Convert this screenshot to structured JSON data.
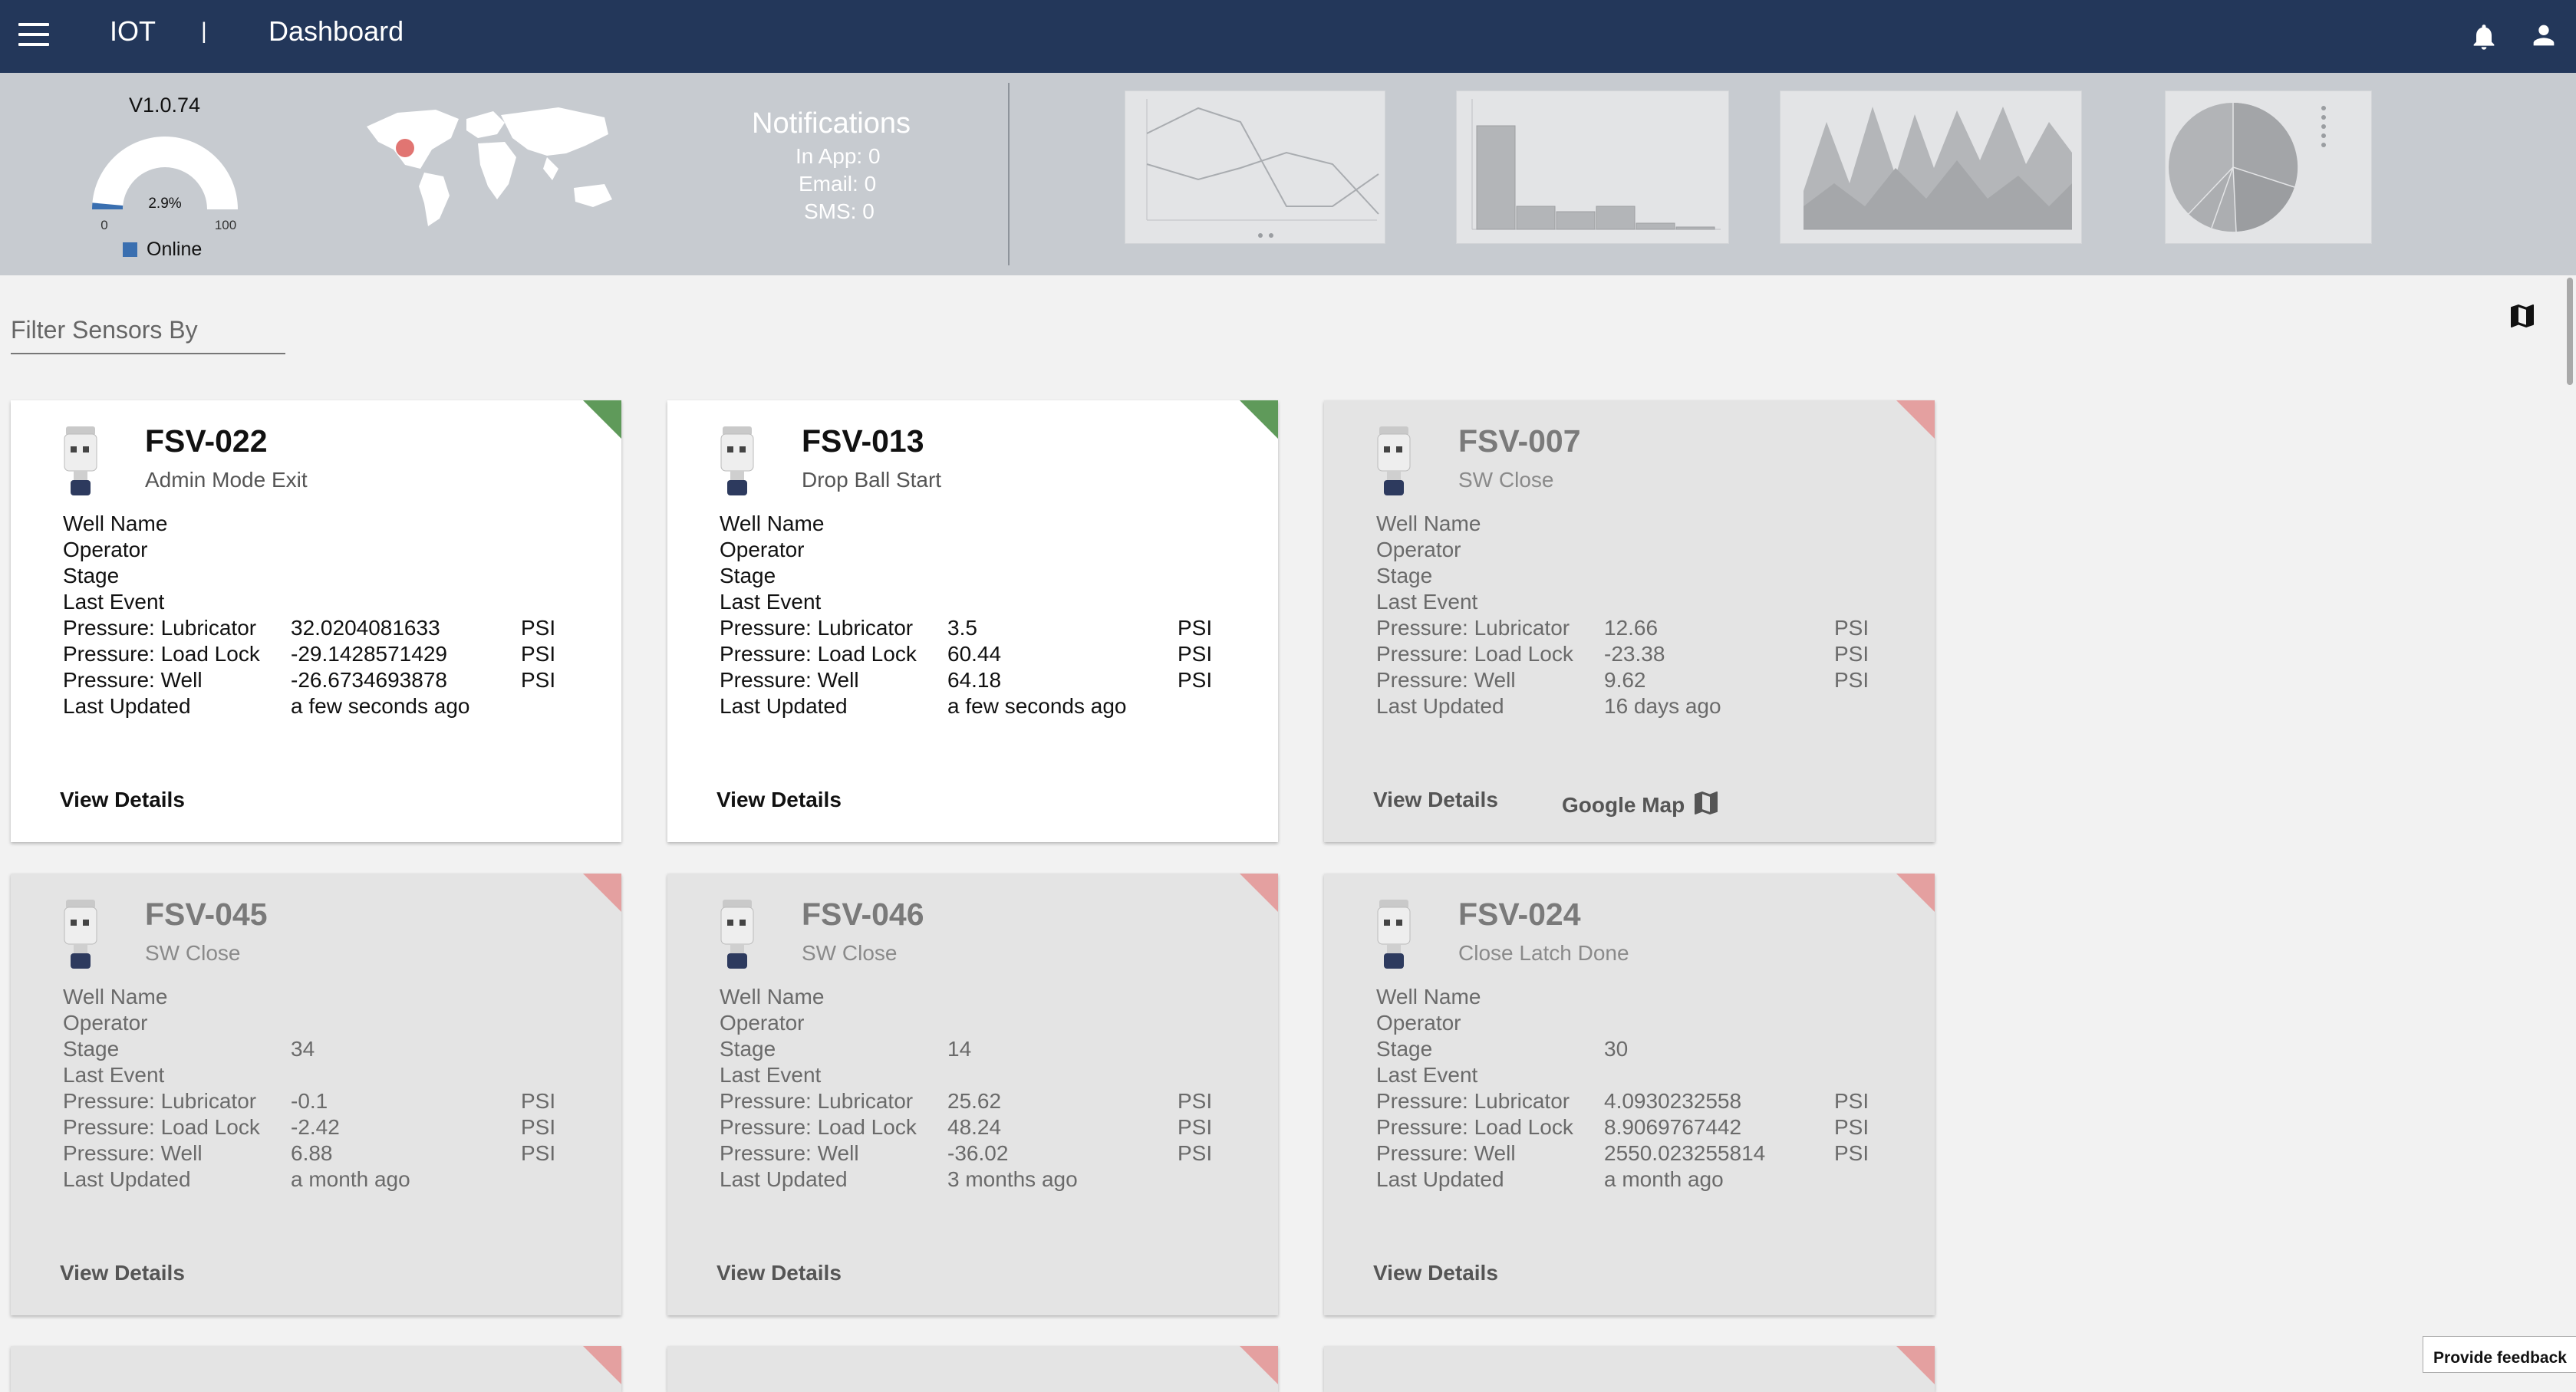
{
  "header": {
    "app_title": "IOT",
    "separator": "|",
    "page_title": "Dashboard"
  },
  "summary": {
    "version": "V1.0.74",
    "gauge": {
      "value_label": "2.9%",
      "value": 2.9,
      "min_label": "0",
      "max_label": "100",
      "fill_color": "#3a6fb0"
    },
    "legend_online": "Online",
    "notifications": {
      "title": "Notifications",
      "in_app": "In App: 0",
      "email": "Email: 0",
      "sms": "SMS: 0"
    }
  },
  "filter": {
    "placeholder": "Filter Sensors By",
    "value": ""
  },
  "cards": [
    {
      "id": "FSV-022",
      "status": "Admin Mode Exit",
      "state": "active",
      "well_name_label": "Well Name",
      "operator_label": "Operator",
      "stage_label": "Stage",
      "stage_value": "",
      "last_event_label": "Last Event",
      "lubricator_label": "Pressure: Lubricator",
      "lubricator": "32.0204081633",
      "loadlock_label": "Pressure: Load Lock",
      "loadlock": "-29.1428571429",
      "well_label": "Pressure: Well",
      "well": "-26.6734693878",
      "unit": "PSI",
      "updated_label": "Last Updated",
      "updated": "a few seconds ago",
      "view_label": "View Details"
    },
    {
      "id": "FSV-013",
      "status": "Drop Ball Start",
      "state": "active",
      "well_name_label": "Well Name",
      "operator_label": "Operator",
      "stage_label": "Stage",
      "stage_value": "",
      "last_event_label": "Last Event",
      "lubricator_label": "Pressure: Lubricator",
      "lubricator": "3.5",
      "loadlock_label": "Pressure: Load Lock",
      "loadlock": "60.44",
      "well_label": "Pressure: Well",
      "well": "64.18",
      "unit": "PSI",
      "updated_label": "Last Updated",
      "updated": "a few seconds ago",
      "view_label": "View Details"
    },
    {
      "id": "FSV-007",
      "status": "SW Close",
      "state": "inactive",
      "well_name_label": "Well Name",
      "operator_label": "Operator",
      "stage_label": "Stage",
      "stage_value": "",
      "last_event_label": "Last Event",
      "lubricator_label": "Pressure: Lubricator",
      "lubricator": "12.66",
      "loadlock_label": "Pressure: Load Lock",
      "loadlock": "-23.38",
      "well_label": "Pressure: Well",
      "well": "9.62",
      "unit": "PSI",
      "updated_label": "Last Updated",
      "updated": "16 days ago",
      "view_label": "View Details",
      "map_label": "Google Map"
    },
    {
      "id": "FSV-045",
      "status": "SW Close",
      "state": "inactive",
      "well_name_label": "Well Name",
      "operator_label": "Operator",
      "stage_label": "Stage",
      "stage_value": "34",
      "last_event_label": "Last Event",
      "lubricator_label": "Pressure: Lubricator",
      "lubricator": "-0.1",
      "loadlock_label": "Pressure: Load Lock",
      "loadlock": "-2.42",
      "well_label": "Pressure: Well",
      "well": "6.88",
      "unit": "PSI",
      "updated_label": "Last Updated",
      "updated": "a month ago",
      "view_label": "View Details"
    },
    {
      "id": "FSV-046",
      "status": "SW Close",
      "state": "inactive",
      "well_name_label": "Well Name",
      "operator_label": "Operator",
      "stage_label": "Stage",
      "stage_value": "14",
      "last_event_label": "Last Event",
      "lubricator_label": "Pressure: Lubricator",
      "lubricator": "25.62",
      "loadlock_label": "Pressure: Load Lock",
      "loadlock": "48.24",
      "well_label": "Pressure: Well",
      "well": "-36.02",
      "unit": "PSI",
      "updated_label": "Last Updated",
      "updated": "3 months ago",
      "view_label": "View Details"
    },
    {
      "id": "FSV-024",
      "status": "Close Latch Done",
      "state": "inactive",
      "well_name_label": "Well Name",
      "operator_label": "Operator",
      "stage_label": "Stage",
      "stage_value": "30",
      "last_event_label": "Last Event",
      "lubricator_label": "Pressure: Lubricator",
      "lubricator": "4.0930232558",
      "loadlock_label": "Pressure: Load Lock",
      "loadlock": "8.9069767442",
      "well_label": "Pressure: Well",
      "well": "2550.023255814",
      "unit": "PSI",
      "updated_label": "Last Updated",
      "updated": "a month ago",
      "view_label": "View Details"
    }
  ],
  "feedback_label": "Provide feedback",
  "colors": {
    "header_bg": "#23375a",
    "summary_bg": "#c7cbd0",
    "active_corner": "#5f9a5a",
    "inactive_corner": "#e4a0a0"
  },
  "icons": [
    "menu-icon",
    "bell-icon",
    "person-icon",
    "map-icon",
    "sensor-device-icon"
  ]
}
